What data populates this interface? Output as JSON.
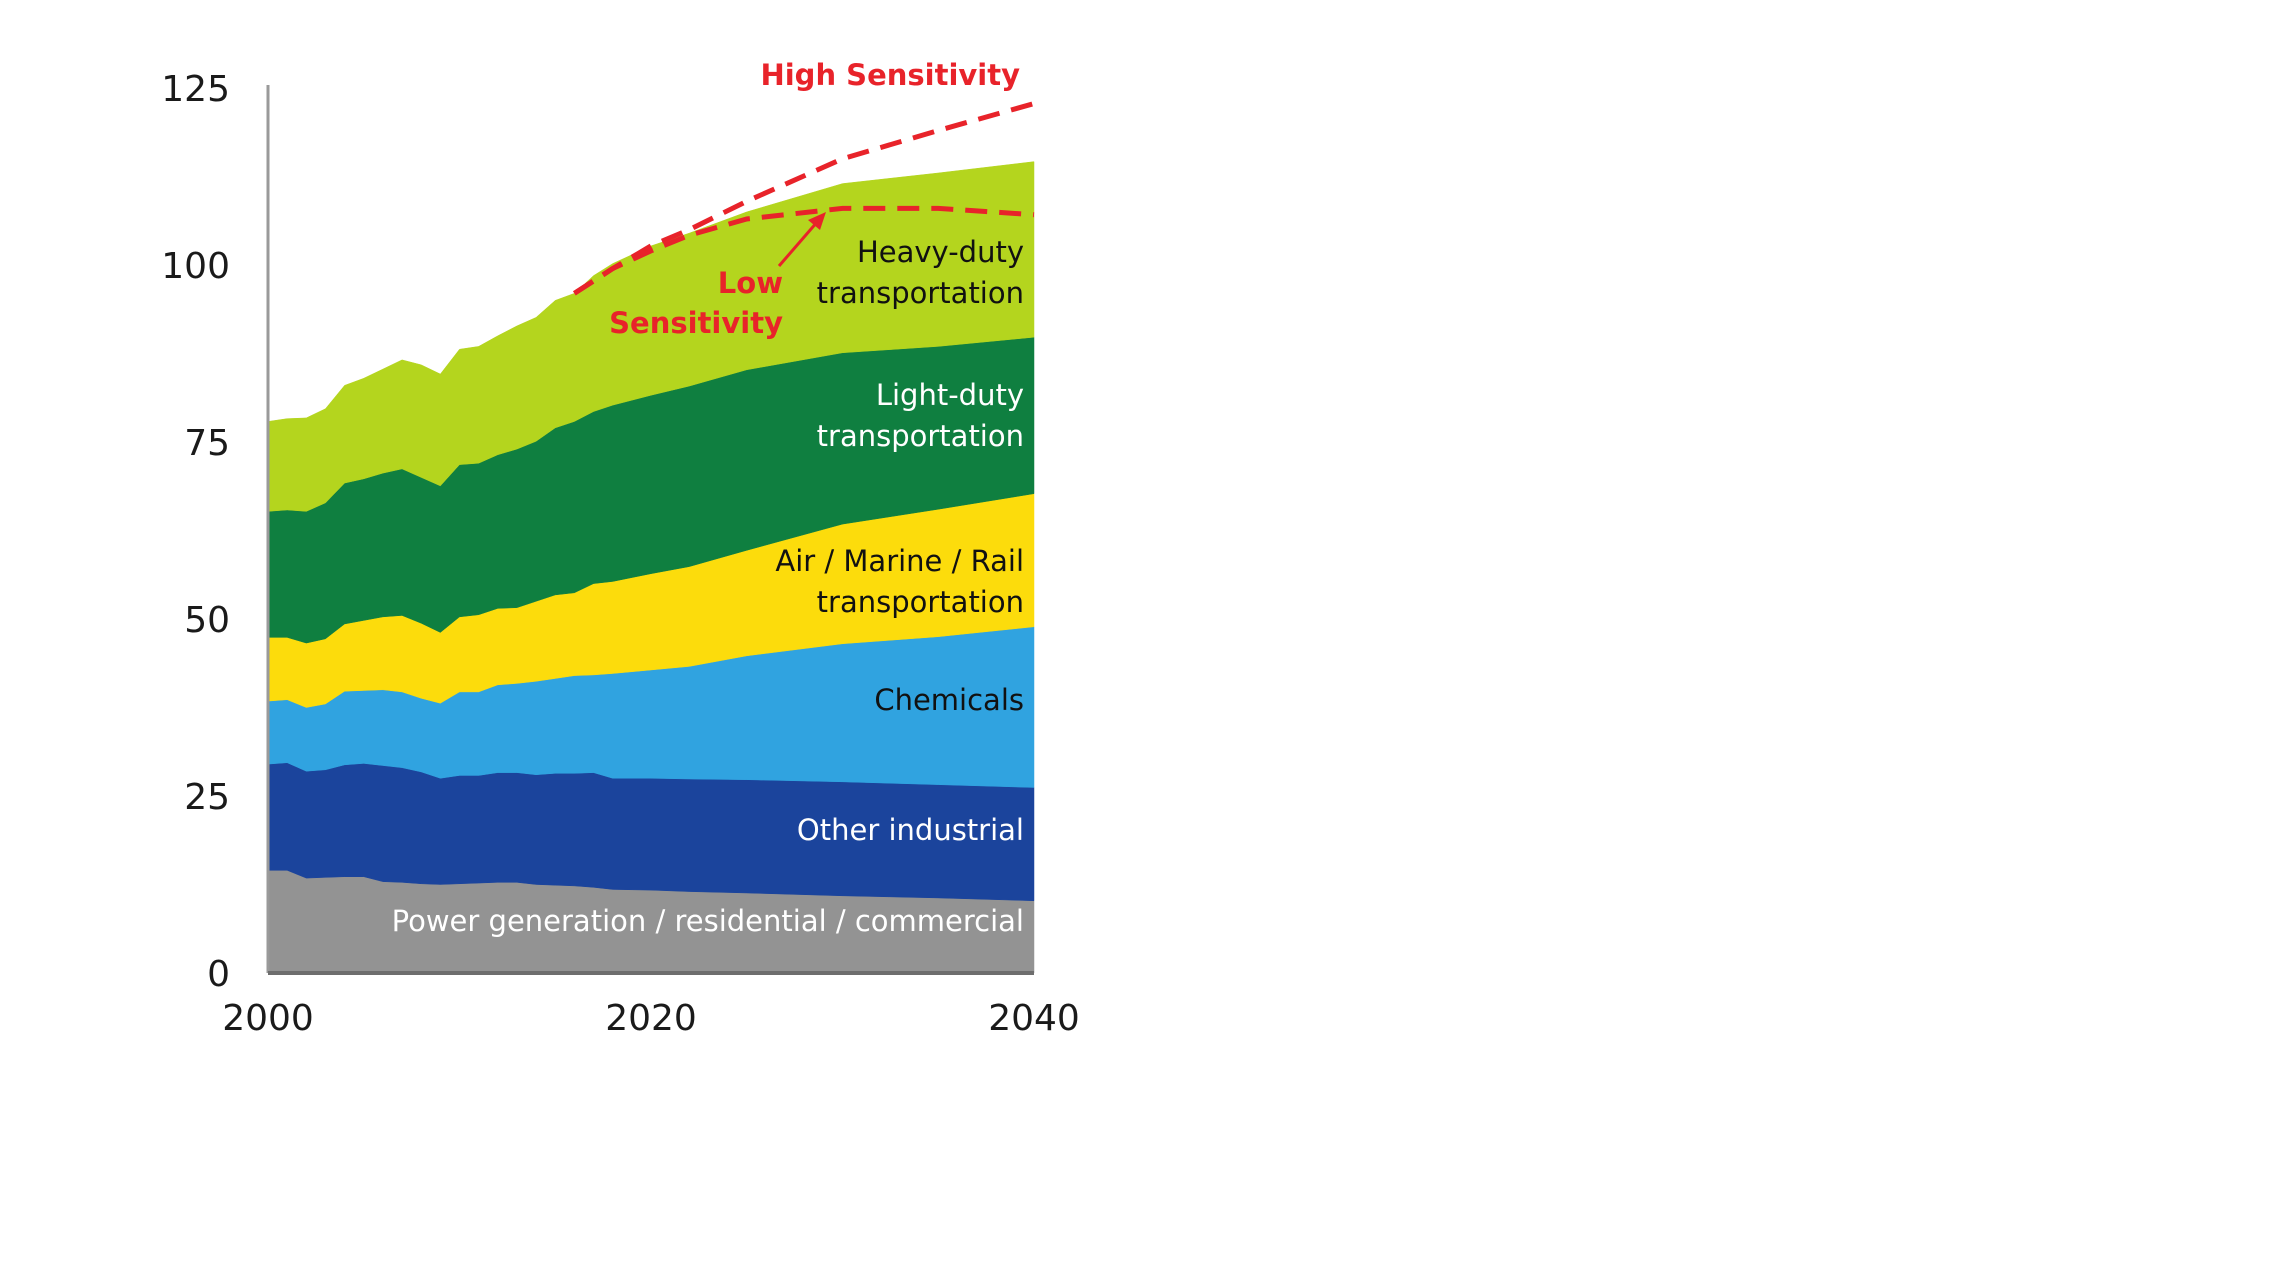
{
  "chart_data": {
    "type": "area",
    "stacked": true,
    "title": "",
    "xlabel": "",
    "ylabel": "",
    "xlim": [
      2000,
      2040
    ],
    "ylim": [
      0,
      125
    ],
    "x_ticks": [
      "2000",
      "2020",
      "2040"
    ],
    "y_ticks": [
      "0",
      "25",
      "50",
      "75",
      "100",
      "125"
    ],
    "grid": false,
    "x": [
      2000,
      2001,
      2002,
      2003,
      2004,
      2005,
      2006,
      2007,
      2008,
      2009,
      2010,
      2011,
      2012,
      2013,
      2014,
      2015,
      2016,
      2017,
      2018,
      2020,
      2022,
      2025,
      2030,
      2035,
      2040
    ],
    "series": [
      {
        "name": "Power generation / residential / commercial",
        "label_lines": [
          "Power generation / residential / commercial"
        ],
        "color": "#939393",
        "label_color": "#ffffff",
        "values": [
          14.5,
          14.5,
          13.4,
          13.5,
          13.6,
          13.6,
          12.9,
          12.8,
          12.6,
          12.5,
          12.6,
          12.7,
          12.8,
          12.8,
          12.5,
          12.4,
          12.3,
          12.1,
          11.8,
          11.7,
          11.5,
          11.3,
          10.9,
          10.6,
          10.2
        ]
      },
      {
        "name": "Other industrial",
        "label_lines": [
          "Other industrial"
        ],
        "color": "#1b449c",
        "label_color": "#ffffff",
        "values": [
          15.0,
          15.2,
          15.1,
          15.2,
          15.8,
          16.0,
          16.4,
          16.2,
          15.8,
          15.0,
          15.3,
          15.2,
          15.5,
          15.5,
          15.5,
          15.8,
          15.9,
          16.2,
          15.7,
          15.8,
          15.9,
          16.0,
          16.1,
          16.0,
          16.0
        ]
      },
      {
        "name": "Chemicals",
        "label_lines": [
          "Chemicals"
        ],
        "color": "#30a3e0",
        "label_color": "#111111",
        "values": [
          8.9,
          8.9,
          9.0,
          9.3,
          10.4,
          10.3,
          10.7,
          10.7,
          10.4,
          10.6,
          11.8,
          11.8,
          12.4,
          12.6,
          13.2,
          13.4,
          13.8,
          13.8,
          14.8,
          15.3,
          15.9,
          17.5,
          19.5,
          20.9,
          22.7
        ]
      },
      {
        "name": "Air / Marine / Rail transportation",
        "label_lines": [
          "Air / Marine / Rail",
          "transportation"
        ],
        "color": "#fcdc0c",
        "label_color": "#111111",
        "values": [
          9.0,
          8.8,
          9.1,
          9.2,
          9.5,
          9.9,
          10.3,
          10.8,
          10.6,
          10.0,
          10.6,
          10.9,
          10.8,
          10.7,
          11.3,
          11.8,
          11.7,
          12.9,
          13.0,
          13.6,
          14.1,
          14.9,
          16.9,
          18.0,
          18.8
        ]
      },
      {
        "name": "Light-duty transportation",
        "label_lines": [
          "Light-duty",
          "transportation"
        ],
        "color": "#0f7f40",
        "label_color": "#ffffff",
        "values": [
          17.8,
          18.0,
          18.6,
          19.2,
          19.9,
          20.0,
          20.3,
          20.7,
          20.6,
          20.7,
          21.5,
          21.4,
          21.7,
          22.4,
          22.6,
          23.6,
          24.2,
          24.3,
          24.9,
          25.2,
          25.5,
          25.5,
          24.2,
          23.0,
          22.1
        ]
      },
      {
        "name": "Heavy-duty transportation",
        "label_lines": [
          "Heavy-duty",
          "transportation"
        ],
        "color": "#b4d51e",
        "label_color": "#111111",
        "values": [
          12.7,
          12.9,
          13.2,
          13.3,
          13.8,
          14.2,
          14.7,
          15.4,
          15.9,
          15.8,
          16.3,
          16.5,
          16.8,
          17.4,
          17.5,
          18.0,
          18.1,
          19.2,
          20.0,
          21.1,
          21.6,
          22.3,
          23.9,
          24.5,
          24.8
        ]
      }
    ],
    "sensitivity": {
      "color": "#e8232a",
      "x": [
        2016,
        2018,
        2020,
        2022,
        2025,
        2030,
        2035,
        2040
      ],
      "high": {
        "name": "High Sensitivity",
        "values": [
          96,
          99.5,
          102.7,
          105,
          109,
          115,
          119,
          122.8
        ]
      },
      "low": {
        "name": "Low Sensitivity",
        "label_lines": [
          "Low",
          "Sensitivity"
        ],
        "values": [
          96,
          99.5,
          102,
          104.2,
          106.5,
          108,
          108,
          107.1
        ]
      }
    }
  }
}
